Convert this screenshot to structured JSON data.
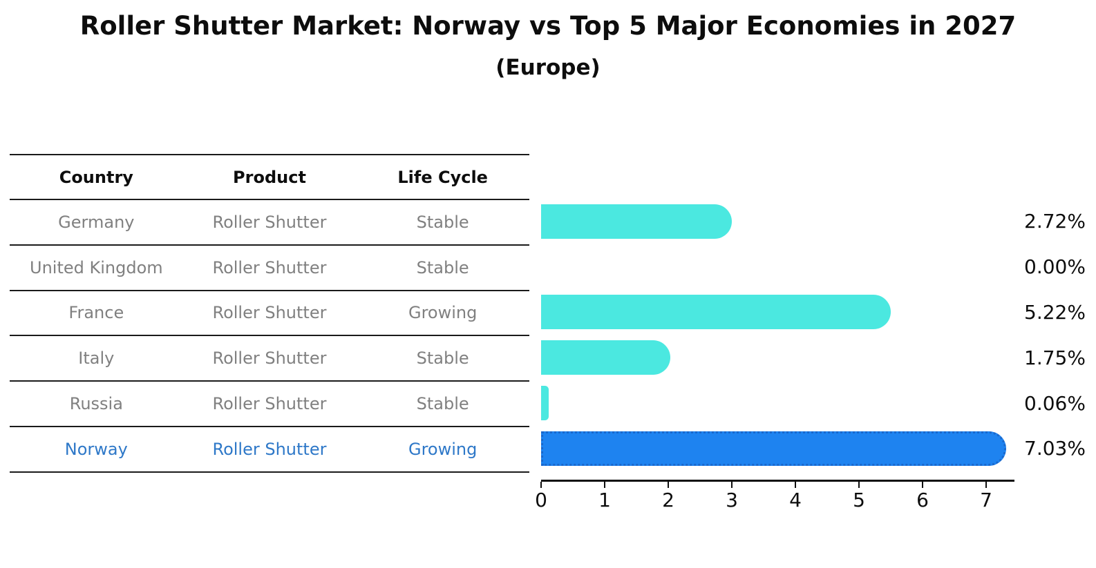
{
  "title": "Roller Shutter Market: Norway vs Top 5 Major Economies in 2027",
  "subtitle": "(Europe)",
  "table": {
    "columns": [
      "Country",
      "Product",
      "Life Cycle"
    ]
  },
  "colors": {
    "bar": "#4be8e0",
    "highlight_bar": "#1e83f0",
    "highlight_bar_border": "#1a68cc",
    "row_text": "#808080",
    "highlight_row_text": "#2e78c8",
    "axis_text": "#0d0d0d"
  },
  "chart_data": {
    "type": "bar",
    "orientation": "horizontal",
    "title": "Roller Shutter Market: Norway vs Top 5 Major Economies in 2027",
    "subtitle": "(Europe)",
    "categories": [
      "Germany",
      "United Kingdom",
      "France",
      "Italy",
      "Russia",
      "Norway"
    ],
    "values": [
      2.72,
      0.0,
      5.22,
      1.75,
      0.06,
      7.03
    ],
    "value_labels": [
      "2.72%",
      "0.00%",
      "5.22%",
      "1.75%",
      "0.06%",
      "7.03%"
    ],
    "xlabel": "",
    "ylabel": "",
    "xlim": [
      0,
      7.45
    ],
    "x_ticks": [
      0,
      1,
      2,
      3,
      4,
      5,
      6,
      7
    ],
    "grid": false,
    "legend": false,
    "highlighted_category": "Norway",
    "table_columns": [
      "Country",
      "Product",
      "Life Cycle"
    ],
    "table_rows": [
      {
        "country": "Germany",
        "product": "Roller Shutter",
        "life_cycle": "Stable",
        "highlight": false
      },
      {
        "country": "United Kingdom",
        "product": "Roller Shutter",
        "life_cycle": "Stable",
        "highlight": false
      },
      {
        "country": "France",
        "product": "Roller Shutter",
        "life_cycle": "Growing",
        "highlight": false
      },
      {
        "country": "Italy",
        "product": "Roller Shutter",
        "life_cycle": "Stable",
        "highlight": false
      },
      {
        "country": "Russia",
        "product": "Roller Shutter",
        "life_cycle": "Stable",
        "highlight": false
      },
      {
        "country": "Norway",
        "product": "Roller Shutter",
        "life_cycle": "Growing",
        "highlight": true
      }
    ]
  }
}
